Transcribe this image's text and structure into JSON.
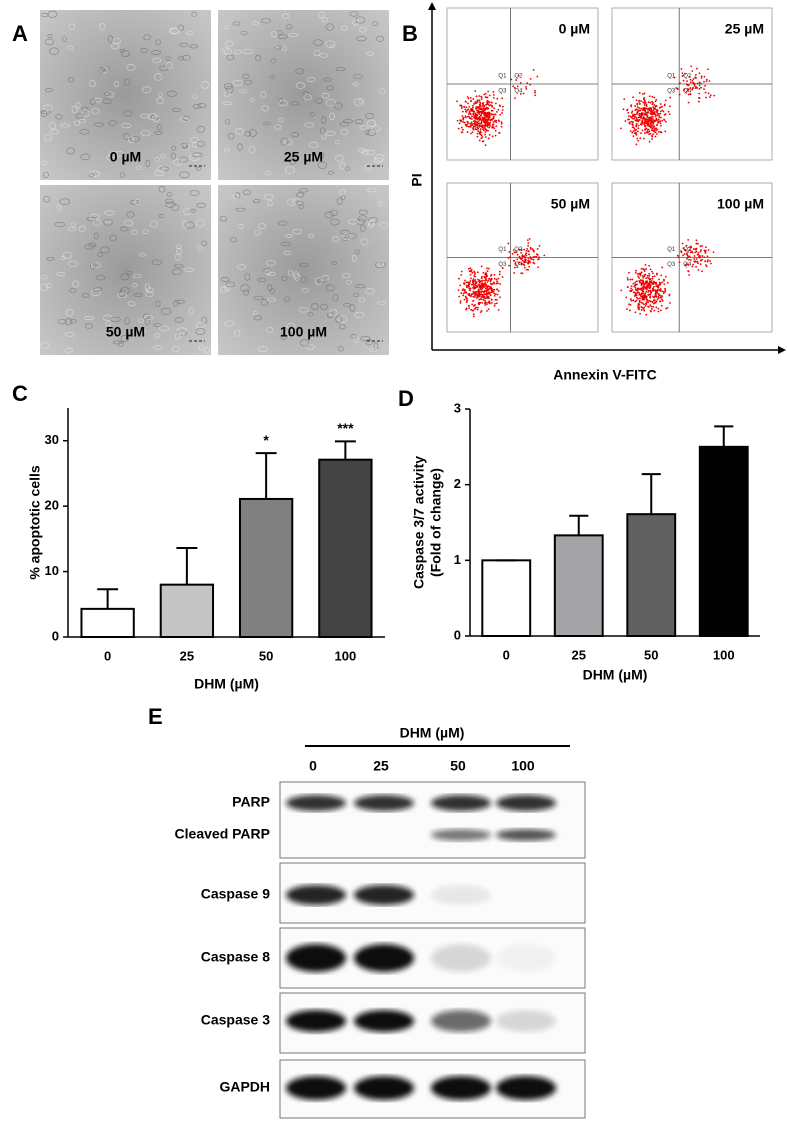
{
  "panel_a": {
    "label": "A",
    "images": [
      "0 µM",
      "25 µM",
      "50 µM",
      "100 µM"
    ]
  },
  "panel_b": {
    "label": "B",
    "ylabel": "PI",
    "xlabel": "Annexin V-FITC",
    "plots": [
      "0 µM",
      "25 µM",
      "50 µM",
      "100 µM"
    ],
    "quadrants": [
      "Q1",
      "Q2",
      "Q3",
      "Q4"
    ]
  },
  "chart_data": [
    {
      "type": "bar",
      "label": "C",
      "ylabel": "% apoptotic cells",
      "xlabel": "DHM (µM)",
      "categories": [
        "0",
        "25",
        "50",
        "100"
      ],
      "values": [
        4.3,
        8,
        21.1,
        27.1
      ],
      "errors": [
        3,
        5.6,
        7,
        2.8
      ],
      "colors": [
        "#ffffff",
        "#c4c4c4",
        "#808080",
        "#444444"
      ],
      "annotations": [
        null,
        null,
        "*",
        "***"
      ],
      "ylim": [
        0,
        35
      ],
      "yticks": [
        0,
        10,
        20,
        30
      ]
    },
    {
      "type": "bar",
      "label": "D",
      "ylabel": [
        "Caspase 3/7 activity",
        "(Fold of change)"
      ],
      "xlabel": "DHM (µM)",
      "categories": [
        "0",
        "25",
        "50",
        "100"
      ],
      "values": [
        1,
        1.33,
        1.61,
        2.5
      ],
      "errors": [
        0,
        0.26,
        0.53,
        0.27
      ],
      "colors": [
        "#ffffff",
        "#a4a4a8",
        "#606060",
        "#000000"
      ],
      "ylim": [
        0,
        3
      ],
      "yticks": [
        0,
        1,
        2,
        3
      ]
    }
  ],
  "panel_e": {
    "label": "E",
    "header": "DHM (µM)",
    "lanes": [
      "0",
      "25",
      "50",
      "100"
    ],
    "rows": [
      "PARP",
      "Cleaved PARP",
      "Caspase 9",
      "Caspase 8",
      "Caspase 3",
      "GAPDH"
    ]
  }
}
